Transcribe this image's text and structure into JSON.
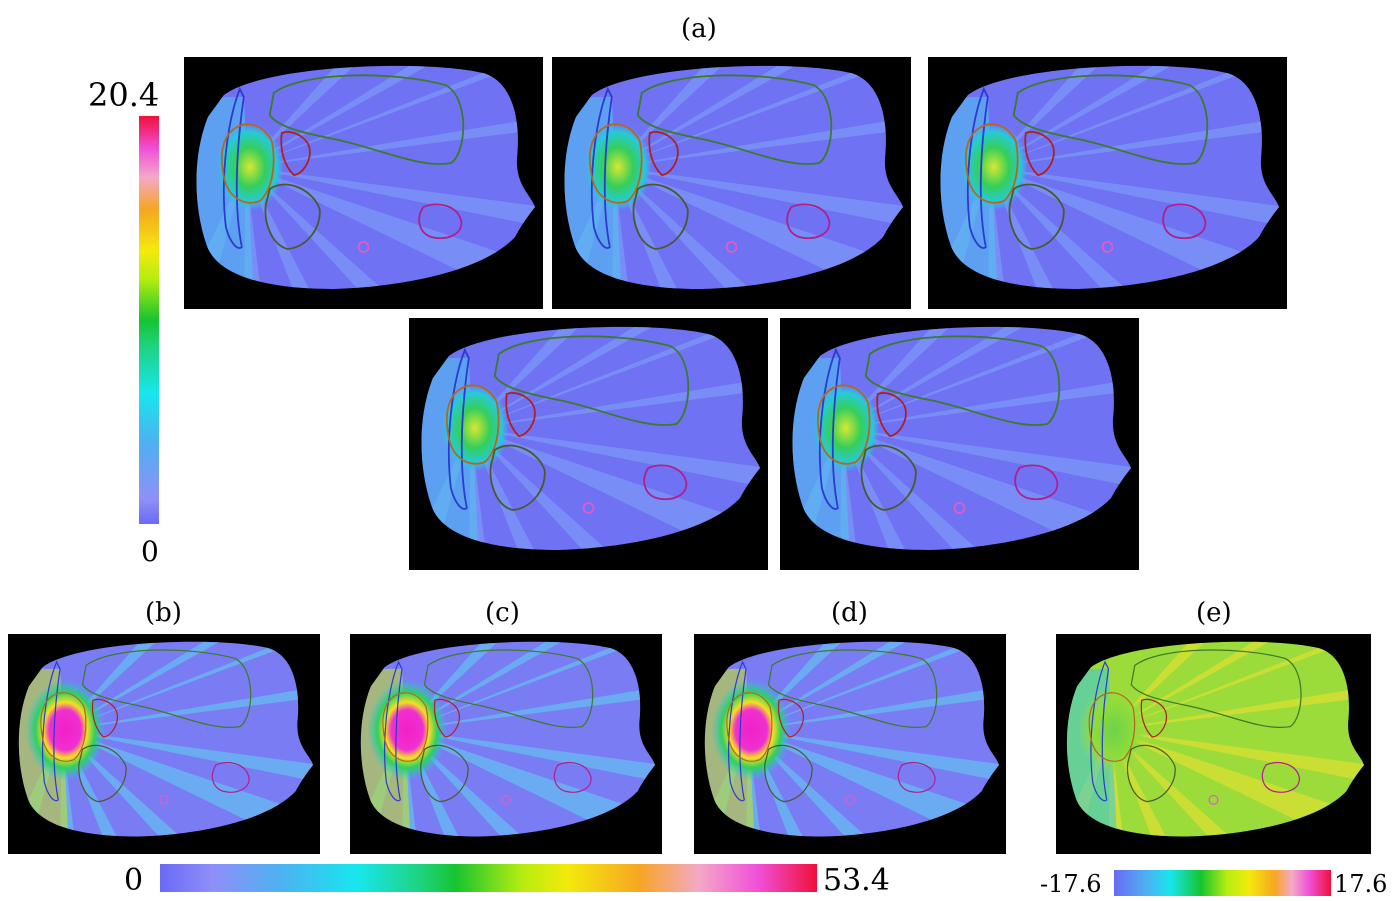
{
  "labels": {
    "a": "(a)",
    "b": "(b)",
    "c": "(c)",
    "d": "(d)",
    "e": "(e)"
  },
  "colorbars": {
    "vertical": {
      "max": "20.4",
      "min": "0"
    },
    "horizontal": {
      "min": "0",
      "max": "53.4"
    },
    "difference": {
      "min": "-17.6",
      "max": "17.6"
    }
  },
  "colors": {
    "background": "#000000",
    "dose_low": "#6a6af5",
    "dose_mid": "#17e6ee",
    "dose_high": "#f0103a",
    "contour_green": "#3d7a2a",
    "contour_blue": "#2a3bd0",
    "contour_orange": "#b8661c",
    "contour_red": "#b02020",
    "contour_magenta": "#b0208a",
    "contour_pink": "#e05cc8"
  }
}
